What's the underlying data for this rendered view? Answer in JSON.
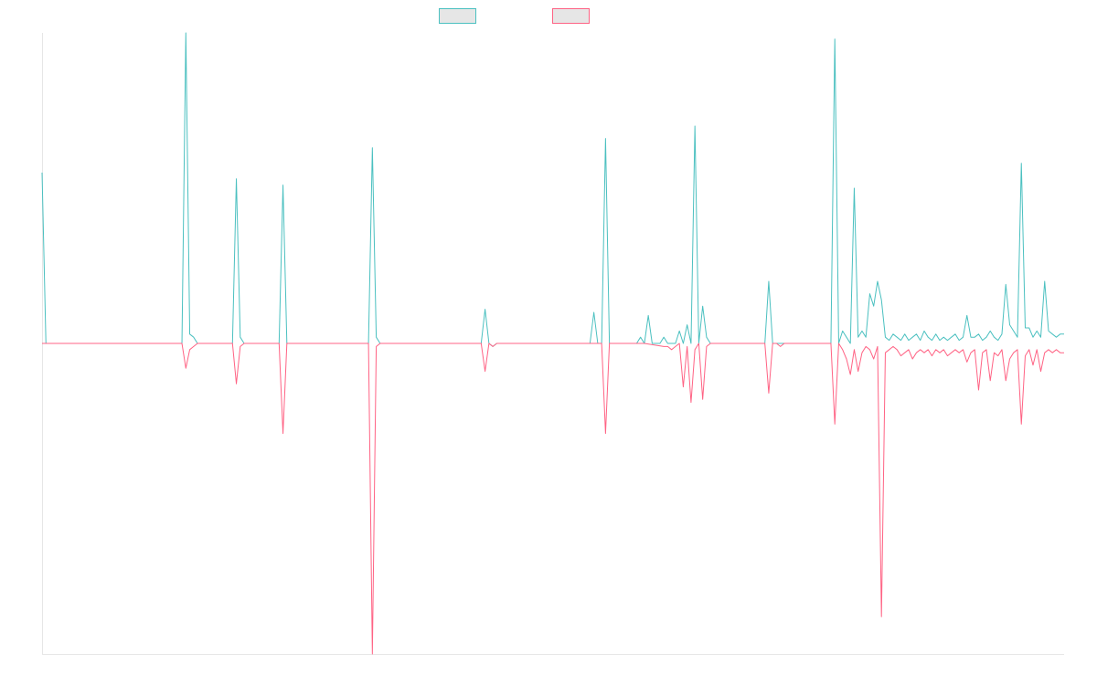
{
  "colors": {
    "series_1": "#4bc0c0",
    "series_2": "#ff6384",
    "legend_fill": "#e6e6e6",
    "axis": "#e6e6e6",
    "background": "#ffffff"
  },
  "chart_data": {
    "type": "line",
    "x_range": [
      0,
      263
    ],
    "ylim": [
      -1.0,
      1.0
    ],
    "grid": false,
    "legend_position": "top-center",
    "series": [
      {
        "color": "#4bc0c0",
        "points": [
          [
            0,
            0.55
          ],
          [
            1,
            0
          ],
          [
            36,
            0
          ],
          [
            37,
            1.0
          ],
          [
            38,
            0.03
          ],
          [
            39,
            0.02
          ],
          [
            40,
            0
          ],
          [
            49,
            0
          ],
          [
            50,
            0.53
          ],
          [
            51,
            0.02
          ],
          [
            52,
            0
          ],
          [
            61,
            0
          ],
          [
            62,
            0.51
          ],
          [
            63,
            0
          ],
          [
            84,
            0
          ],
          [
            85,
            0.63
          ],
          [
            86,
            0.02
          ],
          [
            87,
            0
          ],
          [
            113,
            0
          ],
          [
            114,
            0.11
          ],
          [
            115,
            0
          ],
          [
            116,
            -0.01
          ],
          [
            117,
            0
          ],
          [
            141,
            0
          ],
          [
            142,
            0.1
          ],
          [
            143,
            0
          ],
          [
            144,
            0
          ],
          [
            145,
            0.66
          ],
          [
            146,
            0
          ],
          [
            147,
            0
          ],
          [
            148,
            0
          ],
          [
            153,
            0
          ],
          [
            154,
            0.02
          ],
          [
            155,
            0
          ],
          [
            156,
            0.09
          ],
          [
            157,
            0
          ],
          [
            158,
            0
          ],
          [
            159,
            0
          ],
          [
            160,
            0.02
          ],
          [
            161,
            0
          ],
          [
            162,
            0
          ],
          [
            163,
            0
          ],
          [
            164,
            0.04
          ],
          [
            165,
            0
          ],
          [
            166,
            0.06
          ],
          [
            167,
            0
          ],
          [
            168,
            0.7
          ],
          [
            169,
            0
          ],
          [
            170,
            0.12
          ],
          [
            171,
            0.02
          ],
          [
            172,
            0
          ],
          [
            186,
            0
          ],
          [
            187,
            0.2
          ],
          [
            188,
            0
          ],
          [
            189,
            0
          ],
          [
            190,
            0
          ],
          [
            203,
            0
          ],
          [
            204,
            0.98
          ],
          [
            205,
            0
          ],
          [
            206,
            0.04
          ],
          [
            207,
            0.02
          ],
          [
            208,
            0
          ],
          [
            209,
            0.5
          ],
          [
            210,
            0.02
          ],
          [
            211,
            0.04
          ],
          [
            212,
            0.02
          ],
          [
            213,
            0.16
          ],
          [
            214,
            0.12
          ],
          [
            215,
            0.2
          ],
          [
            216,
            0.14
          ],
          [
            217,
            0.02
          ],
          [
            218,
            0.01
          ],
          [
            219,
            0.03
          ],
          [
            220,
            0.02
          ],
          [
            221,
            0.01
          ],
          [
            222,
            0.03
          ],
          [
            223,
            0.01
          ],
          [
            224,
            0.02
          ],
          [
            225,
            0.03
          ],
          [
            226,
            0.01
          ],
          [
            227,
            0.04
          ],
          [
            228,
            0.02
          ],
          [
            229,
            0.01
          ],
          [
            230,
            0.03
          ],
          [
            231,
            0.01
          ],
          [
            232,
            0.02
          ],
          [
            233,
            0.01
          ],
          [
            234,
            0.02
          ],
          [
            235,
            0.03
          ],
          [
            236,
            0.01
          ],
          [
            237,
            0.02
          ],
          [
            238,
            0.09
          ],
          [
            239,
            0.02
          ],
          [
            240,
            0.02
          ],
          [
            241,
            0.03
          ],
          [
            242,
            0.01
          ],
          [
            243,
            0.02
          ],
          [
            244,
            0.04
          ],
          [
            245,
            0.02
          ],
          [
            246,
            0.01
          ],
          [
            247,
            0.03
          ],
          [
            248,
            0.19
          ],
          [
            249,
            0.06
          ],
          [
            250,
            0.04
          ],
          [
            251,
            0.02
          ],
          [
            252,
            0.58
          ],
          [
            253,
            0.05
          ],
          [
            254,
            0.05
          ],
          [
            255,
            0.02
          ],
          [
            256,
            0.04
          ],
          [
            257,
            0.02
          ],
          [
            258,
            0.2
          ],
          [
            259,
            0.04
          ],
          [
            260,
            0.03
          ],
          [
            261,
            0.02
          ],
          [
            262,
            0.03
          ],
          [
            263,
            0.03
          ]
        ]
      },
      {
        "color": "#ff6384",
        "points": [
          [
            0,
            0
          ],
          [
            36,
            0
          ],
          [
            37,
            -0.08
          ],
          [
            38,
            -0.02
          ],
          [
            39,
            -0.01
          ],
          [
            40,
            0
          ],
          [
            49,
            0
          ],
          [
            50,
            -0.13
          ],
          [
            51,
            -0.01
          ],
          [
            52,
            0
          ],
          [
            61,
            0
          ],
          [
            62,
            -0.29
          ],
          [
            63,
            0
          ],
          [
            84,
            0
          ],
          [
            85,
            -1.0
          ],
          [
            86,
            -0.01
          ],
          [
            87,
            0
          ],
          [
            113,
            0
          ],
          [
            114,
            -0.09
          ],
          [
            115,
            0
          ],
          [
            116,
            -0.01
          ],
          [
            117,
            0
          ],
          [
            144,
            0
          ],
          [
            145,
            -0.29
          ],
          [
            146,
            0
          ],
          [
            147,
            0
          ],
          [
            154,
            0
          ],
          [
            155,
            0
          ],
          [
            160,
            -0.01
          ],
          [
            161,
            -0.01
          ],
          [
            162,
            -0.02
          ],
          [
            163,
            -0.01
          ],
          [
            164,
            0
          ],
          [
            165,
            -0.14
          ],
          [
            166,
            -0.01
          ],
          [
            167,
            -0.19
          ],
          [
            168,
            -0.02
          ],
          [
            169,
            0
          ],
          [
            170,
            -0.18
          ],
          [
            171,
            -0.01
          ],
          [
            172,
            0
          ],
          [
            186,
            0
          ],
          [
            187,
            -0.16
          ],
          [
            188,
            0
          ],
          [
            189,
            0
          ],
          [
            190,
            -0.01
          ],
          [
            191,
            0
          ],
          [
            203,
            0
          ],
          [
            204,
            -0.26
          ],
          [
            205,
            0
          ],
          [
            206,
            -0.02
          ],
          [
            207,
            -0.05
          ],
          [
            208,
            -0.1
          ],
          [
            209,
            -0.02
          ],
          [
            210,
            -0.09
          ],
          [
            211,
            -0.03
          ],
          [
            212,
            -0.01
          ],
          [
            213,
            -0.02
          ],
          [
            214,
            -0.05
          ],
          [
            215,
            -0.01
          ],
          [
            216,
            -0.88
          ],
          [
            217,
            -0.03
          ],
          [
            218,
            -0.02
          ],
          [
            219,
            -0.01
          ],
          [
            220,
            -0.02
          ],
          [
            221,
            -0.04
          ],
          [
            222,
            -0.03
          ],
          [
            223,
            -0.02
          ],
          [
            224,
            -0.05
          ],
          [
            225,
            -0.03
          ],
          [
            226,
            -0.02
          ],
          [
            227,
            -0.03
          ],
          [
            228,
            -0.02
          ],
          [
            229,
            -0.04
          ],
          [
            230,
            -0.02
          ],
          [
            231,
            -0.03
          ],
          [
            232,
            -0.02
          ],
          [
            233,
            -0.04
          ],
          [
            234,
            -0.03
          ],
          [
            235,
            -0.02
          ],
          [
            236,
            -0.03
          ],
          [
            237,
            -0.02
          ],
          [
            238,
            -0.06
          ],
          [
            239,
            -0.03
          ],
          [
            240,
            -0.02
          ],
          [
            241,
            -0.15
          ],
          [
            242,
            -0.03
          ],
          [
            243,
            -0.02
          ],
          [
            244,
            -0.12
          ],
          [
            245,
            -0.03
          ],
          [
            246,
            -0.04
          ],
          [
            247,
            -0.02
          ],
          [
            248,
            -0.12
          ],
          [
            249,
            -0.05
          ],
          [
            250,
            -0.03
          ],
          [
            251,
            -0.02
          ],
          [
            252,
            -0.26
          ],
          [
            253,
            -0.04
          ],
          [
            254,
            -0.02
          ],
          [
            255,
            -0.07
          ],
          [
            256,
            -0.02
          ],
          [
            257,
            -0.09
          ],
          [
            258,
            -0.03
          ],
          [
            259,
            -0.02
          ],
          [
            260,
            -0.03
          ],
          [
            261,
            -0.02
          ],
          [
            262,
            -0.03
          ],
          [
            263,
            -0.03
          ]
        ]
      }
    ]
  }
}
